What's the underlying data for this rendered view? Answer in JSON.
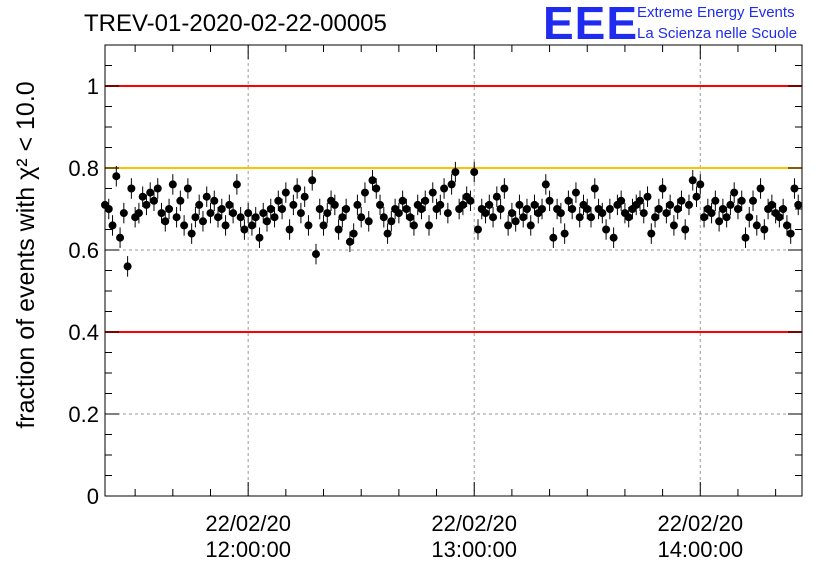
{
  "title": "TREV-01-2020-02-22-00005",
  "logo": {
    "mark": "EEE",
    "line1": "Extreme Energy Events",
    "line2": "La Scienza nelle Scuole",
    "color": "#1f2cf0"
  },
  "chart_data": {
    "type": "scatter",
    "ylabel": "fraction of events with χ² < 10.0",
    "ylim": [
      0,
      1.1
    ],
    "x_unit": "minutes",
    "xlim": [
      "2020-02-22 11:22",
      "2020-02-22 14:27"
    ],
    "xticks": [
      {
        "x": "2020-02-22 12:00",
        "label_line1": "22/02/20",
        "label_line2": "12:00:00"
      },
      {
        "x": "2020-02-22 13:00",
        "label_line1": "22/02/20",
        "label_line2": "13:00:00"
      },
      {
        "x": "2020-02-22 14:00",
        "label_line1": "22/02/20",
        "label_line2": "14:00:00"
      }
    ],
    "yticks": [
      "0",
      "0.2",
      "0.4",
      "0.6",
      "0.8",
      "1"
    ],
    "grid": true,
    "reference_lines": [
      {
        "y": 1.0,
        "color": "#ff0000"
      },
      {
        "y": 0.8,
        "color": "#ffc000"
      },
      {
        "y": 0.4,
        "color": "#ff0000"
      }
    ],
    "series": [
      {
        "marker_color": "#000000",
        "error": 0.025,
        "x_start": "2020-02-22 11:22",
        "x_step_minutes": 1,
        "values": [
          0.71,
          0.7,
          0.66,
          0.78,
          0.63,
          0.69,
          0.56,
          0.75,
          0.68,
          0.69,
          0.73,
          0.71,
          0.74,
          0.72,
          0.75,
          0.69,
          0.67,
          0.7,
          0.76,
          0.68,
          0.72,
          0.66,
          0.75,
          0.64,
          0.68,
          0.71,
          0.67,
          0.73,
          0.69,
          0.72,
          0.68,
          0.7,
          0.66,
          0.71,
          0.69,
          0.76,
          0.68,
          0.65,
          0.69,
          0.66,
          0.68,
          0.63,
          0.69,
          0.67,
          0.7,
          0.68,
          0.72,
          0.7,
          0.74,
          0.65,
          0.71,
          0.75,
          0.69,
          0.73,
          0.66,
          0.77,
          0.59,
          0.7,
          0.66,
          0.69,
          0.72,
          0.71,
          0.65,
          0.68,
          0.7,
          0.62,
          0.64,
          0.71,
          0.68,
          0.74,
          0.67,
          0.77,
          0.75,
          0.71,
          0.68,
          0.64,
          0.67,
          0.7,
          0.69,
          0.72,
          0.7,
          0.68,
          0.66,
          0.71,
          0.7,
          0.72,
          0.66,
          0.74,
          0.7,
          0.71,
          0.75,
          0.69,
          0.76,
          0.79,
          0.7,
          0.71,
          0.73,
          0.72,
          0.79,
          0.65,
          0.7,
          0.69,
          0.71,
          0.68,
          0.73,
          0.7,
          0.75,
          0.66,
          0.69,
          0.67,
          0.71,
          0.68,
          0.7,
          0.66,
          0.71,
          0.69,
          0.7,
          0.76,
          0.72,
          0.63,
          0.7,
          0.69,
          0.64,
          0.72,
          0.7,
          0.74,
          0.68,
          0.71,
          0.7,
          0.68,
          0.75,
          0.7,
          0.69,
          0.65,
          0.7,
          0.63,
          0.71,
          0.72,
          0.69,
          0.68,
          0.7,
          0.71,
          0.72,
          0.69,
          0.73,
          0.64,
          0.68,
          0.7,
          0.75,
          0.69,
          0.71,
          0.66,
          0.7,
          0.72,
          0.65,
          0.71,
          0.77,
          0.73,
          0.76,
          0.68,
          0.7,
          0.69,
          0.72,
          0.67,
          0.7,
          0.68,
          0.71,
          0.74,
          0.7,
          0.72,
          0.63,
          0.68,
          0.72,
          0.66,
          0.75,
          0.65,
          0.7,
          0.71,
          0.69,
          0.68,
          0.7,
          0.66,
          0.64,
          0.75,
          0.71
        ]
      }
    ]
  }
}
